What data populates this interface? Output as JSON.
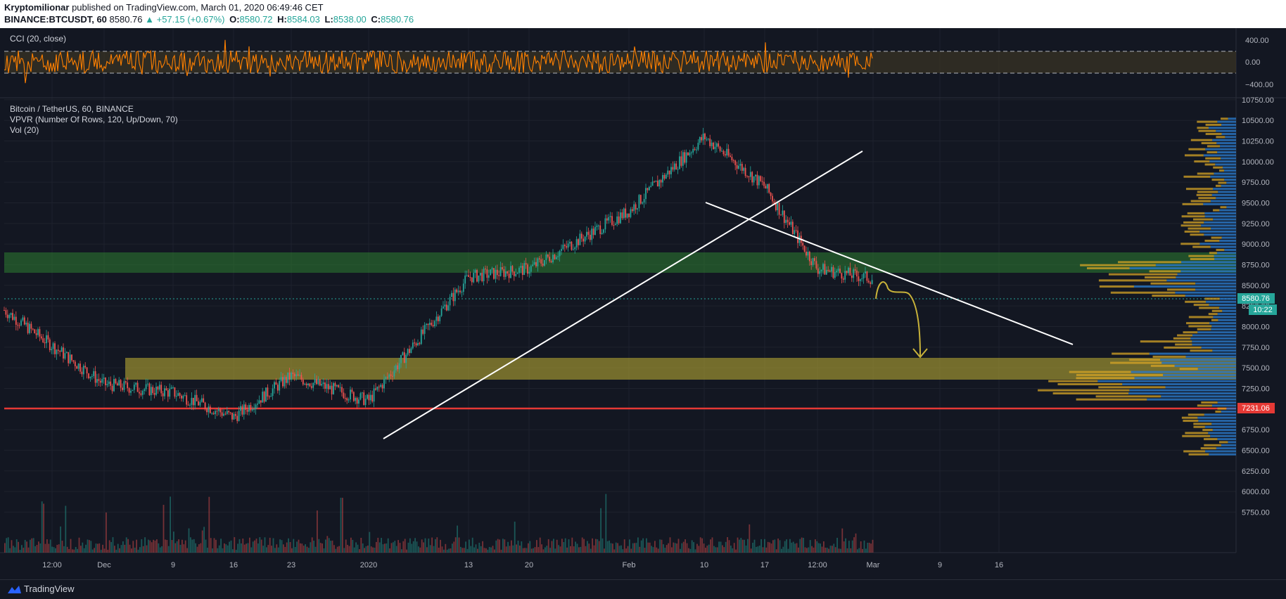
{
  "header": {
    "author": "Kryptomilionar",
    "published": " published on TradingView.com, March 01, 2020 06:49:46 CET",
    "symbol": "BINANCE:BTCUSDT, 60",
    "last": " 8580.76",
    "change": " ▲ +57.15 (+0.67%)",
    "o_label": "O:",
    "o_value": "8580.72",
    "h_label": "H:",
    "h_value": "8584.03",
    "l_label": "L:",
    "l_value": "8538.00",
    "c_label": "C:",
    "c_value": "8580.76"
  },
  "cci_panel": {
    "label": "CCI (20, close)",
    "ticks": [
      "400.00",
      "0.00",
      "−400.00"
    ]
  },
  "main_panel": {
    "legend": [
      "Bitcoin / TetherUS, 60, BINANCE",
      "VPVR (Number Of Rows, 120, Up/Down, 70)",
      "Vol (20)"
    ],
    "price_ticks": [
      "10750.00",
      "10500.00",
      "10250.00",
      "10000.00",
      "9750.00",
      "9500.00",
      "9250.00",
      "9000.00",
      "8750.00",
      "8500.00",
      "8250.00",
      "8000.00",
      "7750.00",
      "7500.00",
      "7250.00",
      "7000.00",
      "6750.00",
      "6500.00",
      "6250.00",
      "6000.00",
      "5750.00"
    ],
    "price_label": "8580.76",
    "timer_label": "10:22",
    "support_label": "7231.06"
  },
  "time_axis": [
    "12:00",
    "Dec",
    "9",
    "16",
    "23",
    "2020",
    "13",
    "20",
    "Feb",
    "10",
    "17",
    "12:00",
    "Mar",
    "9",
    "16"
  ],
  "footer": {
    "brand": "TradingView"
  },
  "colors": {
    "bg": "#131722",
    "up": "#26a69a",
    "down": "#ef5350",
    "cci": "#ff8000",
    "support": "#e53935",
    "green_zone": "#2e7d32",
    "yellow_zone": "#b5a733",
    "vp_up": "#2a78c8",
    "vp_down": "#d6a426"
  },
  "chart_data": {
    "type": "candlestick",
    "symbol": "BINANCE:BTCUSDT",
    "timeframe": "60",
    "x": [
      "Nov 25 2019",
      "Dec 2",
      "Dec 9",
      "Dec 16",
      "Dec 23",
      "Jan 1 2020",
      "Jan 13",
      "Jan 20",
      "Feb 1",
      "Feb 10",
      "Feb 17",
      "Feb 24",
      "Mar 1"
    ],
    "close_approx": [
      8200,
      7300,
      7200,
      6900,
      7400,
      7100,
      8600,
      8700,
      9400,
      10300,
      9700,
      8700,
      8580
    ],
    "last_price": 8580.76,
    "ylim": [
      5600,
      10800
    ],
    "zones": [
      {
        "name": "green resistance",
        "y": [
          8850,
          9130
        ]
      },
      {
        "name": "yellow support",
        "y": [
          7600,
          7870
        ]
      }
    ],
    "horizontal_line": 7231.06,
    "cci": {
      "ylim": [
        -500,
        500
      ],
      "levels": [
        200,
        0,
        -200
      ]
    },
    "legend": "none",
    "grid": true
  }
}
